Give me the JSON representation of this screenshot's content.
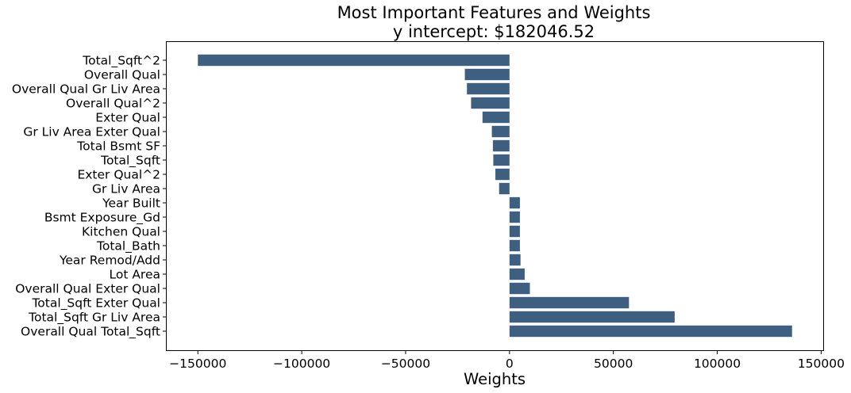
{
  "chart_data": {
    "type": "bar",
    "orientation": "horizontal",
    "title": "Most Important Features and Weights",
    "subtitle": "y intercept: $182046.52",
    "xlabel": "Weights",
    "ylabel": "",
    "xlim": [
      -165000,
      151000
    ],
    "x_ticks": [
      -150000,
      -100000,
      -50000,
      0,
      50000,
      100000,
      150000
    ],
    "x_tick_labels": [
      "−150000",
      "−100000",
      "−50000",
      "0",
      "50000",
      "100000",
      "150000"
    ],
    "bar_color": "#3e5f7f",
    "grid": false,
    "legend": "none",
    "categories": [
      "Total_Sqft^2",
      "Overall Qual",
      "Overall Qual Gr Liv Area",
      "Overall Qual^2",
      "Exter Qual",
      "Gr Liv Area Exter Qual",
      "Total Bsmt SF",
      "Total_Sqft",
      "Exter Qual^2",
      "Gr Liv Area",
      "Year Built",
      "Bsmt Exposure_Gd",
      "Kitchen Qual",
      "Total_Bath",
      "Year Remod/Add",
      "Lot Area",
      "Overall Qual Exter Qual",
      "Total_Sqft Exter Qual",
      "Total_Sqft Gr Liv Area",
      "Overall Qual Total_Sqft"
    ],
    "values": [
      -150000,
      -21500,
      -20500,
      -18500,
      -13000,
      -8500,
      -8000,
      -7800,
      -6800,
      -5000,
      5000,
      5000,
      5000,
      5000,
      5300,
      7300,
      9800,
      57500,
      79500,
      136000
    ]
  }
}
